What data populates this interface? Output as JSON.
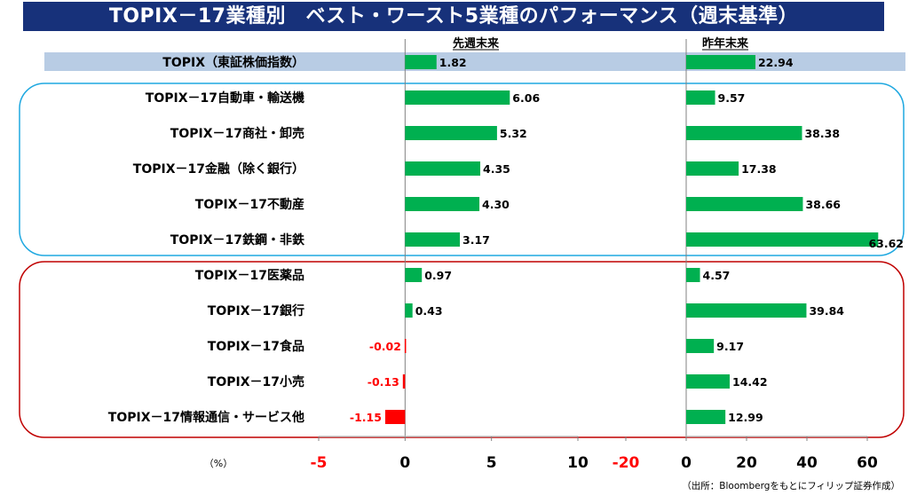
{
  "title": "TOPIX－17業種別　ベスト・ワースト5業種のパフォーマンス（週末基準）",
  "unit": "（%）",
  "source": "（出所：Bloombergをもとにフィリップ証券作成）",
  "colors": {
    "positive": "#00b050",
    "negative": "#ff0000",
    "header_bg": "#17317a",
    "benchmark_row": "#b8cce4",
    "best_box": "#1fa8e0",
    "worst_box": "#c00000"
  },
  "chart_data": [
    {
      "type": "bar",
      "orientation": "horizontal",
      "title": "先週末来",
      "categories": [
        "TOPIX（東証株価指数）",
        "TOPIX－17自動車・輸送機",
        "TOPIX－17商社・卸売",
        "TOPIX－17金融（除く銀行）",
        "TOPIX－17不動産",
        "TOPIX－17鉄鋼・非鉄",
        "TOPIX－17医薬品",
        "TOPIX－17銀行",
        "TOPIX－17食品",
        "TOPIX－17小売",
        "TOPIX－17情報通信・サービス他"
      ],
      "values": [
        1.82,
        6.06,
        5.32,
        4.35,
        4.3,
        3.17,
        0.97,
        0.43,
        -0.02,
        -0.13,
        -1.15
      ],
      "value_labels": [
        "1.82",
        "6.06",
        "5.32",
        "4.35",
        "4.30",
        "3.17",
        "0.97",
        "0.43",
        "-0.02",
        "-0.13",
        "-1.15"
      ],
      "xlim": [
        -5,
        10
      ],
      "ticks": [
        -5,
        0,
        5,
        10
      ],
      "tick_labels": [
        "-5",
        "0",
        "5",
        "10"
      ]
    },
    {
      "type": "bar",
      "orientation": "horizontal",
      "title": "昨年末来",
      "categories": [
        "TOPIX（東証株価指数）",
        "TOPIX－17自動車・輸送機",
        "TOPIX－17商社・卸売",
        "TOPIX－17金融（除く銀行）",
        "TOPIX－17不動産",
        "TOPIX－17鉄鋼・非鉄",
        "TOPIX－17医薬品",
        "TOPIX－17銀行",
        "TOPIX－17食品",
        "TOPIX－17小売",
        "TOPIX－17情報通信・サービス他"
      ],
      "values": [
        22.94,
        9.57,
        38.38,
        17.38,
        38.66,
        63.62,
        4.57,
        39.84,
        9.17,
        14.42,
        12.99
      ],
      "value_labels": [
        "22.94",
        "9.57",
        "38.38",
        "17.38",
        "38.66",
        "63.62",
        "4.57",
        "39.84",
        "9.17",
        "14.42",
        "12.99"
      ],
      "xlim": [
        -20,
        60
      ],
      "ticks": [
        -20,
        0,
        20,
        40,
        60
      ],
      "tick_labels": [
        "-20",
        "0",
        "20",
        "40",
        "60"
      ]
    }
  ]
}
